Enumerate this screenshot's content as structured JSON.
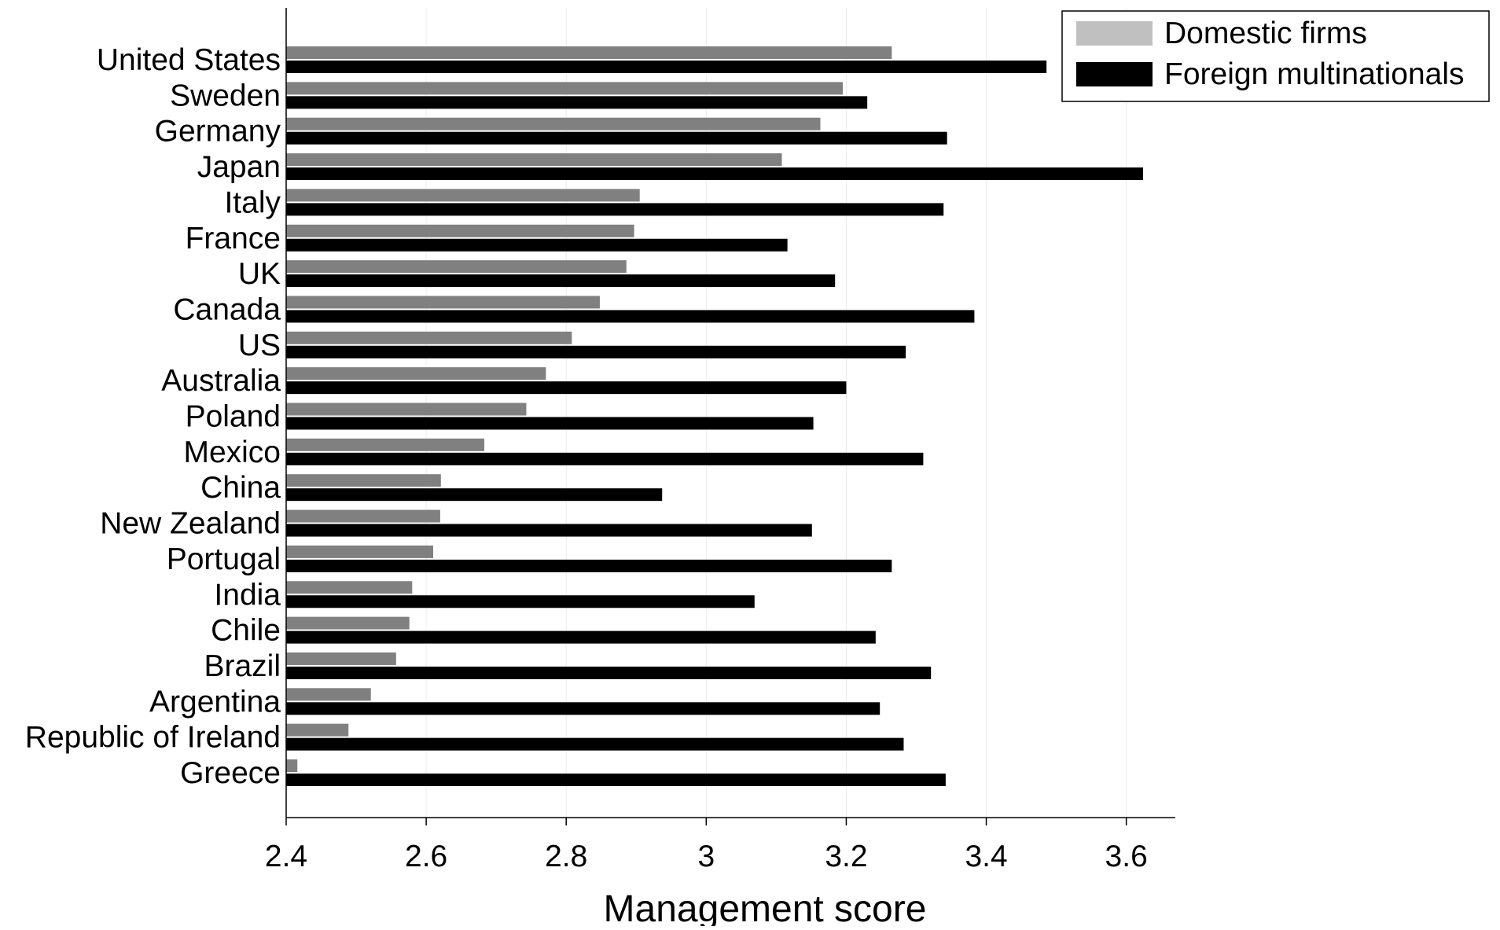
{
  "chart_data": {
    "type": "bar",
    "orientation": "horizontal",
    "xlabel": "Management score",
    "ylabel": "",
    "xlim": [
      2.4,
      3.67
    ],
    "xticks": [
      "2.4",
      "2.6",
      "2.8",
      "3",
      "3.2",
      "3.4",
      "3.6"
    ],
    "grid": "vertical",
    "legend_position": "top-right",
    "categories": [
      "United States",
      "Sweden",
      "Germany",
      "Japan",
      "Italy",
      "France",
      "UK",
      "Canada",
      "US",
      "Australia",
      "Poland",
      "Mexico",
      "China",
      "New Zealand",
      "Portugal",
      "India",
      "Chile",
      "Brazil",
      "Argentina",
      "Republic of Ireland",
      "Greece"
    ],
    "series": [
      {
        "name": "Domestic firms",
        "color": "#808080",
        "legend_color": "#c0c0c0",
        "values": [
          3.265,
          3.195,
          3.163,
          3.108,
          2.905,
          2.897,
          2.886,
          2.848,
          2.808,
          2.771,
          2.743,
          2.683,
          2.621,
          2.62,
          2.61,
          2.58,
          2.576,
          2.557,
          2.521,
          2.489,
          2.416
        ]
      },
      {
        "name": "Foreign multinationals",
        "color": "#000000",
        "legend_color": "#000000",
        "values": [
          3.486,
          3.23,
          3.344,
          3.624,
          3.339,
          3.116,
          3.184,
          3.383,
          3.285,
          3.2,
          3.153,
          3.31,
          2.937,
          3.151,
          3.265,
          3.069,
          3.242,
          3.321,
          3.248,
          3.282,
          3.342
        ]
      }
    ]
  }
}
